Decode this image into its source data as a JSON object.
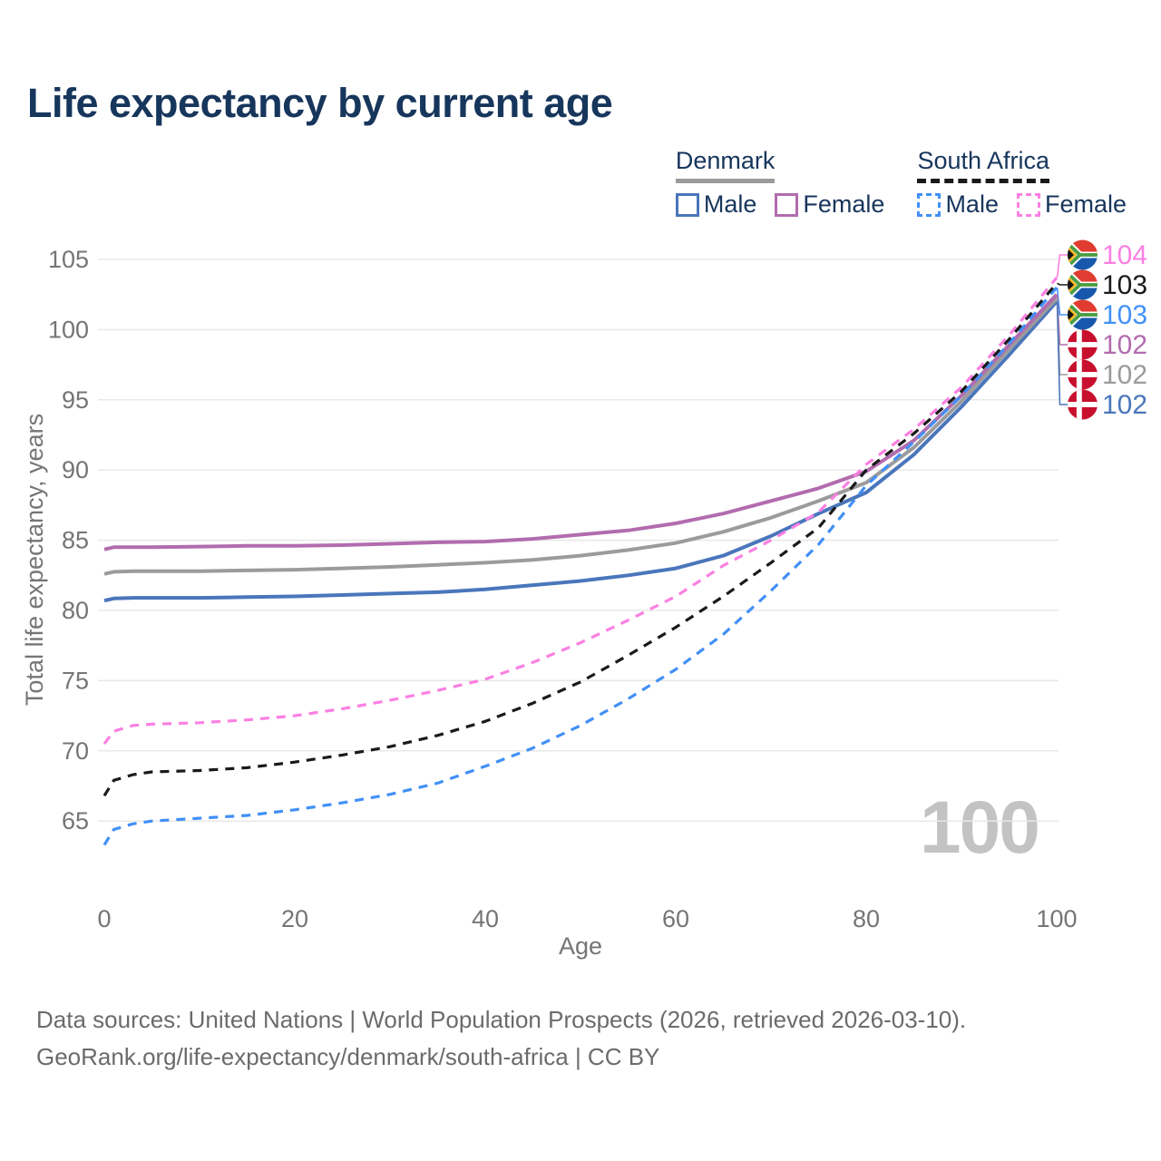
{
  "title": "Life expectancy by current age",
  "watermark": "100",
  "legend": {
    "groups": [
      {
        "name": "Denmark",
        "line_style": "solid",
        "line_color": "#9b9b9b",
        "items": [
          {
            "label": "Male",
            "color": "#4a76bb",
            "style": "solid"
          },
          {
            "label": "Female",
            "color": "#b26cae",
            "style": "solid"
          }
        ]
      },
      {
        "name": "South Africa",
        "line_style": "dashed",
        "line_color": "#1a1a1a",
        "items": [
          {
            "label": "Male",
            "color": "#4190f7",
            "style": "dashed"
          },
          {
            "label": "Female",
            "color": "#fb80e2",
            "style": "dashed"
          }
        ]
      }
    ]
  },
  "footer": {
    "line1": "Data sources: United Nations | World Population Prospects (2026, retrieved 2026-03-10).",
    "line2": "GeoRank.org/life-expectancy/denmark/south-africa | CC BY"
  },
  "chart_data": {
    "type": "line",
    "title": "Life expectancy by current age",
    "xlabel": "Age",
    "ylabel": "Total life expectancy, years",
    "x_ticks": [
      0,
      20,
      40,
      60,
      80,
      100
    ],
    "y_ticks": [
      65,
      70,
      75,
      80,
      85,
      90,
      95,
      100,
      105
    ],
    "xlim": [
      0,
      100
    ],
    "ylim": [
      62.5,
      106
    ],
    "grid": "horizontal",
    "colors": {
      "gridline": "#e8e8e8",
      "tick_text": "#757575",
      "title_text": "#17365c"
    },
    "x": [
      0,
      1,
      3,
      5,
      10,
      15,
      20,
      25,
      30,
      35,
      40,
      45,
      50,
      55,
      60,
      65,
      70,
      75,
      80,
      85,
      90,
      95,
      100
    ],
    "series": [
      {
        "name": "Denmark Male",
        "country": "Denmark",
        "sex": "Male",
        "flag": "dk",
        "style": "solid",
        "color": "#4a76bb",
        "end_label": "102",
        "values": [
          80.7,
          80.85,
          80.9,
          80.9,
          80.9,
          80.95,
          81.0,
          81.1,
          81.2,
          81.3,
          81.5,
          81.8,
          82.1,
          82.5,
          83.0,
          83.9,
          85.3,
          86.9,
          88.4,
          91.1,
          94.5,
          98.2,
          102.0
        ]
      },
      {
        "name": "Denmark All",
        "country": "Denmark",
        "sex": "All",
        "flag": "dk",
        "style": "solid",
        "color": "#9b9b9b",
        "end_label": "102",
        "values": [
          82.6,
          82.75,
          82.8,
          82.8,
          82.8,
          82.85,
          82.9,
          83.0,
          83.1,
          83.25,
          83.4,
          83.6,
          83.9,
          84.3,
          84.8,
          85.6,
          86.6,
          87.8,
          89.1,
          91.6,
          94.9,
          98.6,
          102.2
        ]
      },
      {
        "name": "Denmark Female",
        "country": "Denmark",
        "sex": "Female",
        "flag": "dk",
        "style": "solid",
        "color": "#b26cae",
        "end_label": "102",
        "values": [
          84.35,
          84.5,
          84.5,
          84.5,
          84.55,
          84.6,
          84.6,
          84.65,
          84.75,
          84.85,
          84.9,
          85.1,
          85.4,
          85.7,
          86.2,
          86.9,
          87.8,
          88.7,
          89.9,
          92.1,
          95.3,
          98.9,
          102.5
        ]
      },
      {
        "name": "South Africa Female",
        "country": "South Africa",
        "sex": "Female",
        "flag": "za",
        "style": "dashed",
        "color": "#fb80e2",
        "end_label": "104",
        "values": [
          70.5,
          71.4,
          71.8,
          71.9,
          72.0,
          72.2,
          72.5,
          73.0,
          73.6,
          74.3,
          75.1,
          76.3,
          77.7,
          79.3,
          81.0,
          83.2,
          85.0,
          87.0,
          90.4,
          92.9,
          95.9,
          99.6,
          103.7
        ]
      },
      {
        "name": "South Africa Male",
        "country": "South Africa",
        "sex": "Male",
        "flag": "za",
        "style": "dashed",
        "color": "#4190f7",
        "end_label": "103",
        "values": [
          63.3,
          64.4,
          64.8,
          65.0,
          65.2,
          65.4,
          65.8,
          66.3,
          66.9,
          67.7,
          68.9,
          70.2,
          71.8,
          73.7,
          75.8,
          78.3,
          81.4,
          84.7,
          88.9,
          92.0,
          95.3,
          99.0,
          103.0
        ]
      },
      {
        "name": "South Africa All",
        "country": "South Africa",
        "sex": "All",
        "flag": "za",
        "style": "dashed",
        "color": "#1a1a1a",
        "end_label": "103",
        "values": [
          66.8,
          67.9,
          68.3,
          68.5,
          68.6,
          68.8,
          69.2,
          69.7,
          70.3,
          71.1,
          72.1,
          73.4,
          74.9,
          76.8,
          78.8,
          81.0,
          83.4,
          85.9,
          90.0,
          92.6,
          95.6,
          99.3,
          103.3
        ]
      }
    ]
  }
}
